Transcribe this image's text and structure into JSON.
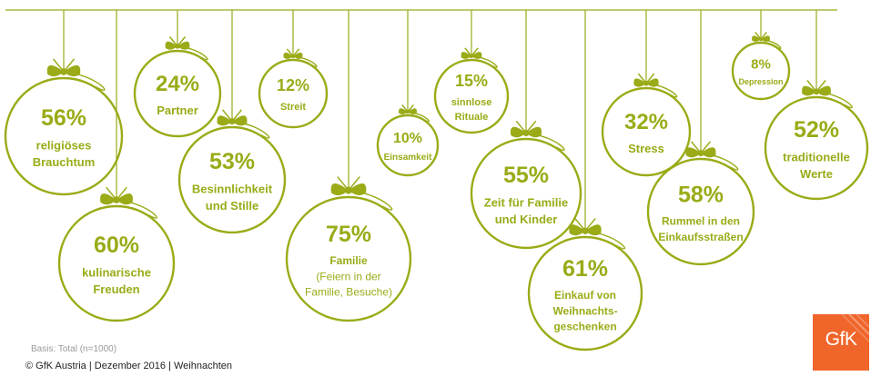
{
  "chart_data": {
    "type": "bar",
    "items": [
      {
        "value": 56,
        "value_label": "56%",
        "lines": [
          "religiöses",
          "Brauchtum"
        ]
      },
      {
        "value": 60,
        "value_label": "60%",
        "lines": [
          "kulinarische",
          "Freuden"
        ]
      },
      {
        "value": 24,
        "value_label": "24%",
        "lines": [
          "Partner"
        ]
      },
      {
        "value": 53,
        "value_label": "53%",
        "lines": [
          "Besinnlichkeit",
          "und Stille"
        ]
      },
      {
        "value": 12,
        "value_label": "12%",
        "lines": [
          "Streit"
        ]
      },
      {
        "value": 75,
        "value_label": "75%",
        "lines": [
          "Familie"
        ],
        "sub_lines": [
          "(Feiern in der",
          "Familie, Besuche)"
        ]
      },
      {
        "value": 10,
        "value_label": "10%",
        "lines": [
          "Einsamkeit"
        ]
      },
      {
        "value": 15,
        "value_label": "15%",
        "lines": [
          "sinnlose",
          "Rituale"
        ]
      },
      {
        "value": 55,
        "value_label": "55%",
        "lines": [
          "Zeit für Familie",
          "und Kinder"
        ]
      },
      {
        "value": 61,
        "value_label": "61%",
        "lines": [
          "Einkauf von",
          "Weihnachts-",
          "geschenken"
        ]
      },
      {
        "value": 32,
        "value_label": "32%",
        "lines": [
          "Stress"
        ]
      },
      {
        "value": 58,
        "value_label": "58%",
        "lines": [
          "Rummel in den",
          "Einkaufsstraßen"
        ]
      },
      {
        "value": 8,
        "value_label": "8%",
        "lines": [
          "Depression"
        ]
      },
      {
        "value": 52,
        "value_label": "52%",
        "lines": [
          "traditionelle",
          "Werte"
        ]
      }
    ]
  },
  "footer": {
    "basis": "Basis: Total (n=1000)",
    "copyright": "© GfK Austria | Dezember 2016 | Weihnachten"
  },
  "logo": {
    "text": "GfK",
    "color": "#f0652a"
  },
  "colors": {
    "accent": "#9aab17",
    "text": "#9aab17",
    "footer_text": "#222222",
    "basis_text": "#9a9a9a"
  }
}
